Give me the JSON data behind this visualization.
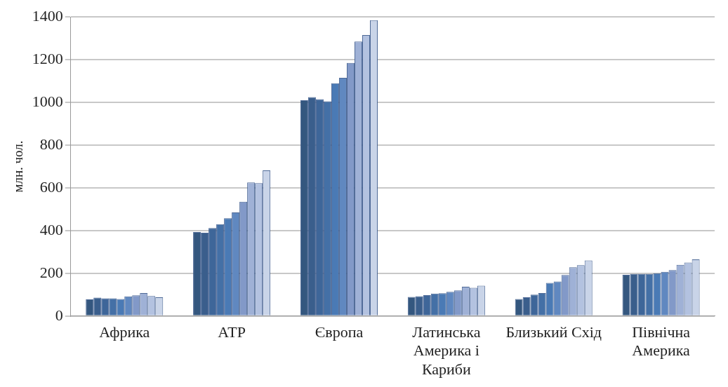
{
  "chart_data": {
    "type": "bar",
    "ylabel": "млн. чол.",
    "categories": [
      "Африка",
      "АТР",
      "Європа",
      "Латинська Америка і Кариби",
      "Близький Схід",
      "Північна Америка"
    ],
    "series": [
      {
        "color": "#34577f",
        "values": [
          78,
          393,
          1010,
          90,
          80,
          193
        ]
      },
      {
        "color": "#3a5e8c",
        "values": [
          86,
          390,
          1025,
          93,
          88,
          197
        ]
      },
      {
        "color": "#3e6699",
        "values": [
          83,
          412,
          1015,
          98,
          100,
          197
        ]
      },
      {
        "color": "#4470a6",
        "values": [
          83,
          430,
          1005,
          105,
          108,
          197
        ]
      },
      {
        "color": "#4a7ab5",
        "values": [
          80,
          458,
          1090,
          107,
          155,
          200
        ]
      },
      {
        "color": "#6088c0",
        "values": [
          92,
          485,
          1115,
          113,
          162,
          207
        ]
      },
      {
        "color": "#8299c8",
        "values": [
          97,
          535,
          1185,
          120,
          192,
          215
        ]
      },
      {
        "color": "#9fb1d6",
        "values": [
          108,
          625,
          1285,
          137,
          228,
          240
        ]
      },
      {
        "color": "#b3c2e0",
        "values": [
          94,
          622,
          1315,
          132,
          238,
          250
        ]
      },
      {
        "color": "#c9d4e8",
        "values": [
          88,
          682,
          1385,
          142,
          260,
          265
        ]
      }
    ],
    "ylim": [
      0,
      1400
    ],
    "yticks": [
      0,
      200,
      400,
      600,
      800,
      1000,
      1200,
      1400
    ],
    "grid": "y",
    "legend": false
  }
}
